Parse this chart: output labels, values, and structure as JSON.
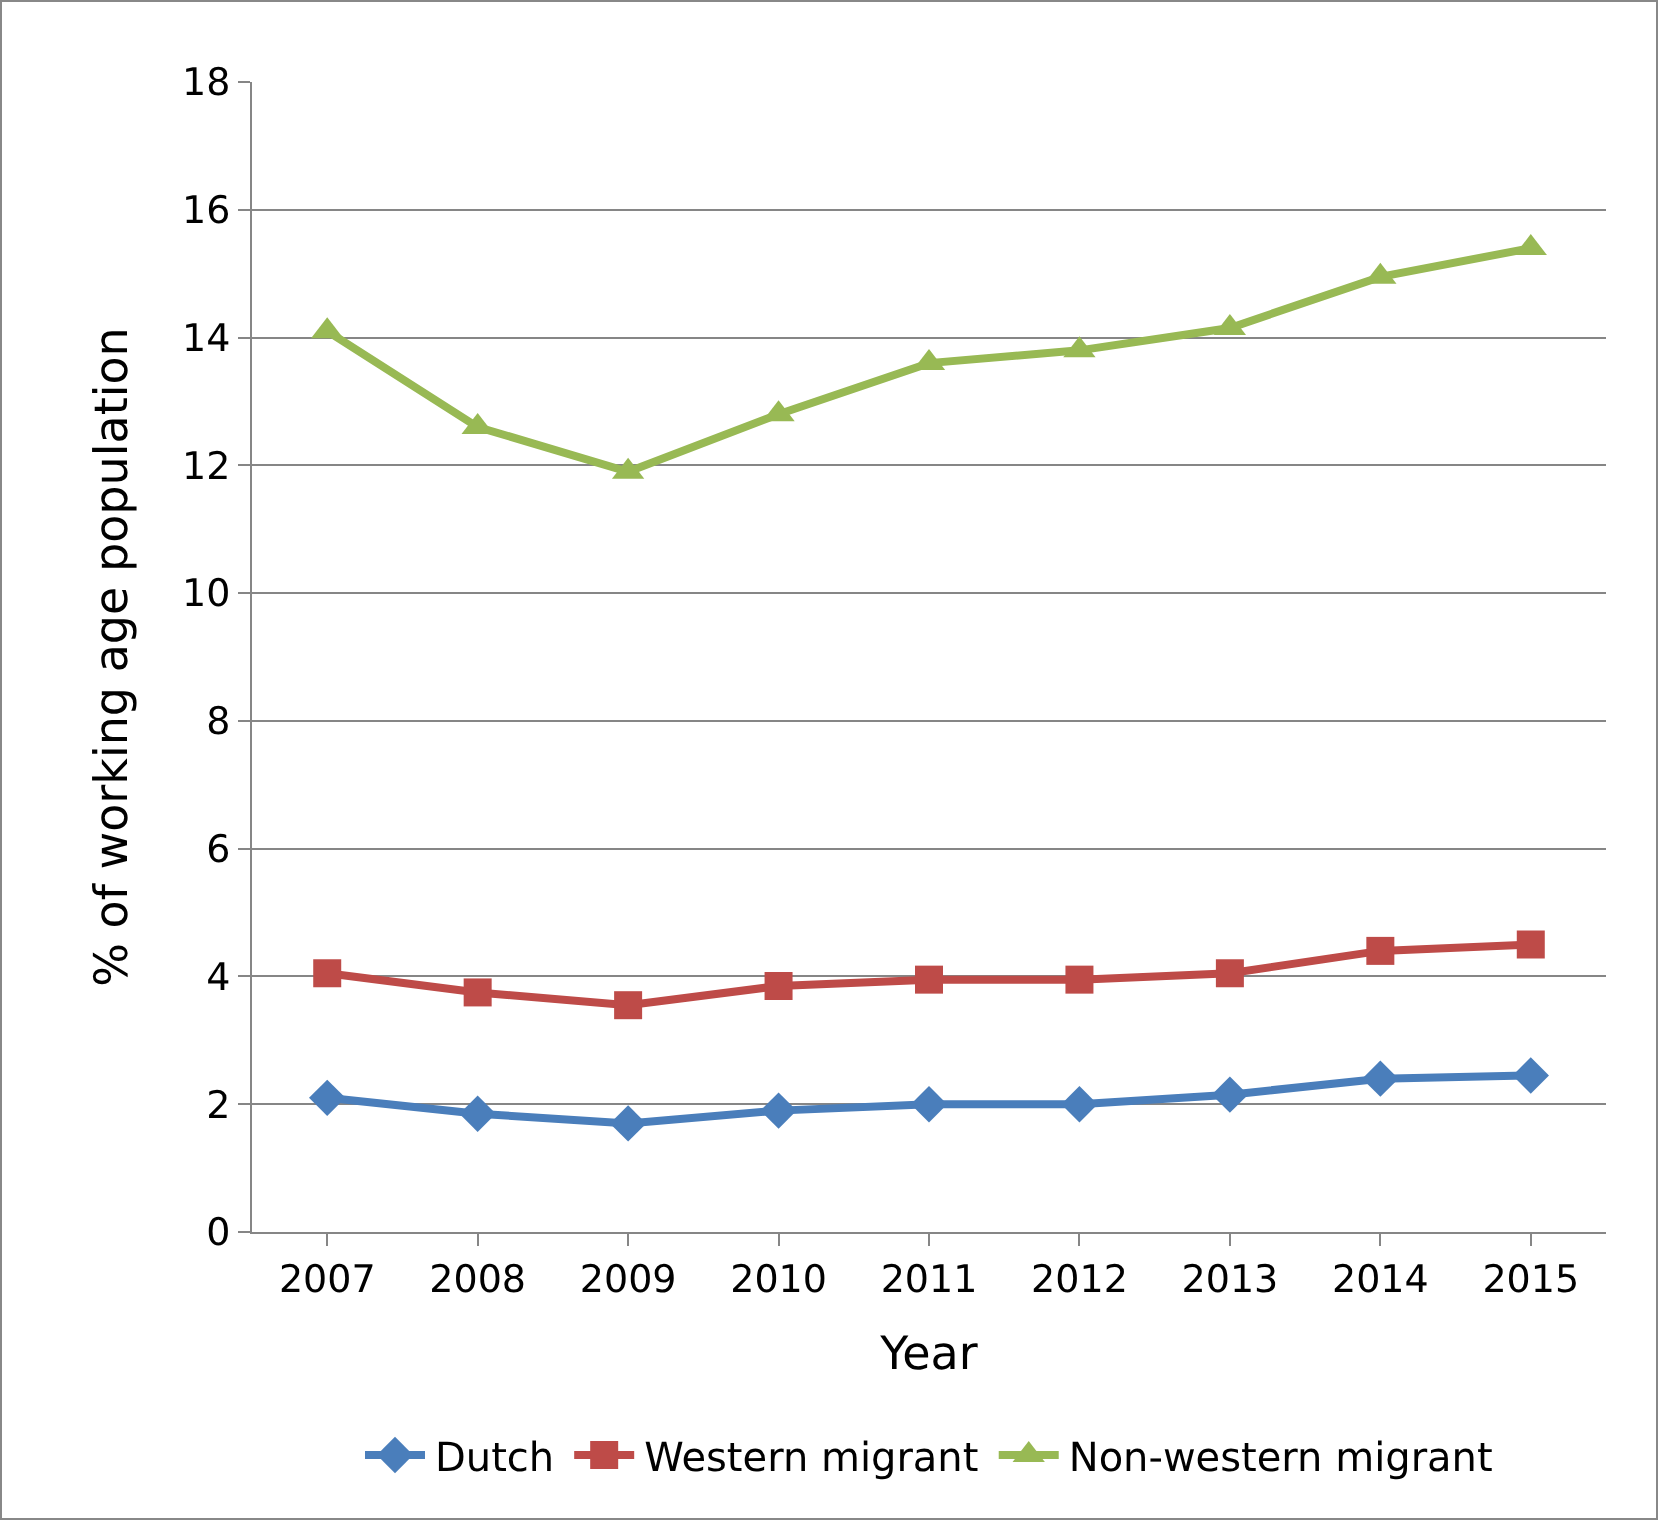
{
  "chart_data": {
    "type": "line",
    "xlabel": "Year",
    "ylabel": "% of working age population",
    "categories": [
      "2007",
      "2008",
      "2009",
      "2010",
      "2011",
      "2012",
      "2013",
      "2014",
      "2015"
    ],
    "series": [
      {
        "name": "Dutch",
        "color": "#4a7ebb",
        "marker": "diamond",
        "values": [
          2.1,
          1.85,
          1.7,
          1.9,
          2.0,
          2.0,
          2.15,
          2.4,
          2.45
        ]
      },
      {
        "name": "Western migrant",
        "color": "#be4b48",
        "marker": "square",
        "values": [
          4.05,
          3.75,
          3.55,
          3.85,
          3.95,
          3.95,
          4.05,
          4.4,
          4.5
        ]
      },
      {
        "name": "Non-western migrant",
        "color": "#98b954",
        "marker": "triangle",
        "values": [
          14.1,
          12.6,
          11.9,
          12.8,
          13.6,
          13.8,
          14.15,
          14.95,
          15.4
        ]
      }
    ],
    "ylim": [
      0,
      18
    ],
    "yticks": [
      0,
      2,
      4,
      6,
      8,
      10,
      12,
      14,
      16,
      18
    ],
    "grid": "y",
    "legend": "bottom",
    "line_style": "solid"
  }
}
